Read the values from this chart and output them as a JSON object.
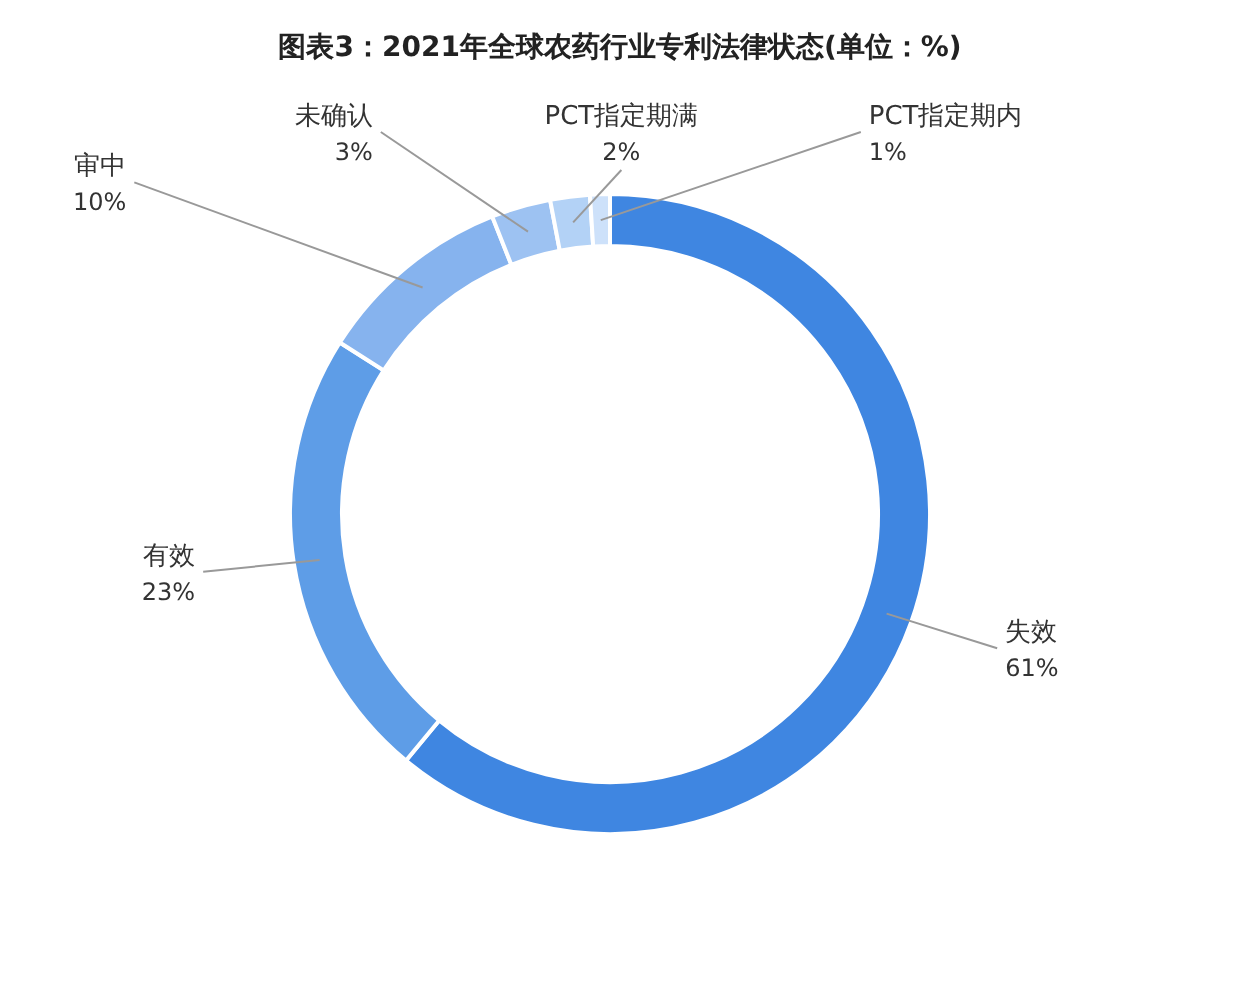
{
  "chart_data": {
    "type": "donut",
    "title": "图表3：2021年全球农药行业专利法律状态(单位：%)",
    "categories": [
      "失效",
      "有效",
      "审中",
      "未确认",
      "PCT指定期满",
      "PCT指定期内"
    ],
    "values": [
      61,
      23,
      10,
      3,
      2,
      1
    ],
    "colors": [
      "#3f86e1",
      "#5e9de7",
      "#86b3ee",
      "#9dc2f2",
      "#b3d2f6",
      "#cde1fa"
    ],
    "value_labels": [
      "61%",
      "23%",
      "10%",
      "3%",
      "2%",
      "1%"
    ]
  }
}
